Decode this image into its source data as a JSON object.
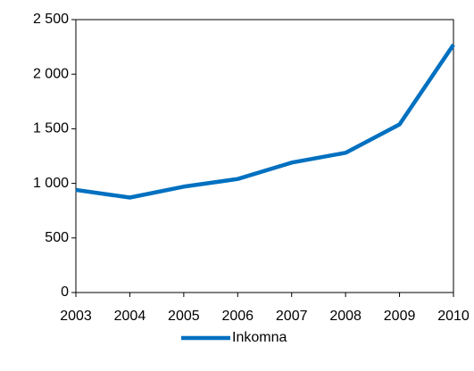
{
  "chart_data": {
    "type": "line",
    "categories": [
      "2003",
      "2004",
      "2005",
      "2006",
      "2007",
      "2008",
      "2009",
      "2010"
    ],
    "series": [
      {
        "name": "Inkomna",
        "color": "#0070c0",
        "values": [
          940,
          870,
          970,
          1040,
          1190,
          1280,
          1540,
          2270
        ]
      }
    ],
    "ylim": [
      0,
      2500
    ],
    "yticks": [
      0,
      500,
      {
        "value": 1000,
        "label": "1 000"
      },
      {
        "value": 1500,
        "label": "1 500"
      },
      {
        "value": 2000,
        "label": "2 000"
      },
      {
        "value": 2500,
        "label": "2 500"
      }
    ],
    "grid": false,
    "legend": "bottom"
  }
}
